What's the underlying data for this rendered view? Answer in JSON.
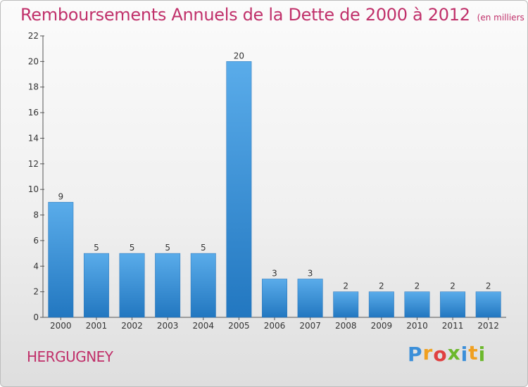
{
  "chart_data": {
    "type": "bar",
    "title": "Remboursements Annuels de la Dette de 2000 à 2012",
    "subtitle": "(en milliers d'€)",
    "categories": [
      "2000",
      "2001",
      "2002",
      "2003",
      "2004",
      "2005",
      "2006",
      "2007",
      "2008",
      "2009",
      "2010",
      "2011",
      "2012"
    ],
    "values": [
      9,
      5,
      5,
      5,
      5,
      20,
      3,
      3,
      2,
      2,
      2,
      2,
      2
    ],
    "ylim": [
      0,
      22
    ],
    "yticks": [
      0,
      2,
      4,
      6,
      8,
      10,
      12,
      14,
      16,
      18,
      20,
      22
    ],
    "grid": false,
    "bar_color": "#3a8fd6"
  },
  "commune": "HERGUGNEY",
  "logo": {
    "letters": [
      "P",
      "r",
      "o",
      "x",
      "i",
      "t",
      "i"
    ],
    "colors": [
      "#3b8fd9",
      "#f0a020",
      "#e04040",
      "#6cb82c",
      "#3b8fd9",
      "#f0a020",
      "#6cb82c"
    ]
  }
}
